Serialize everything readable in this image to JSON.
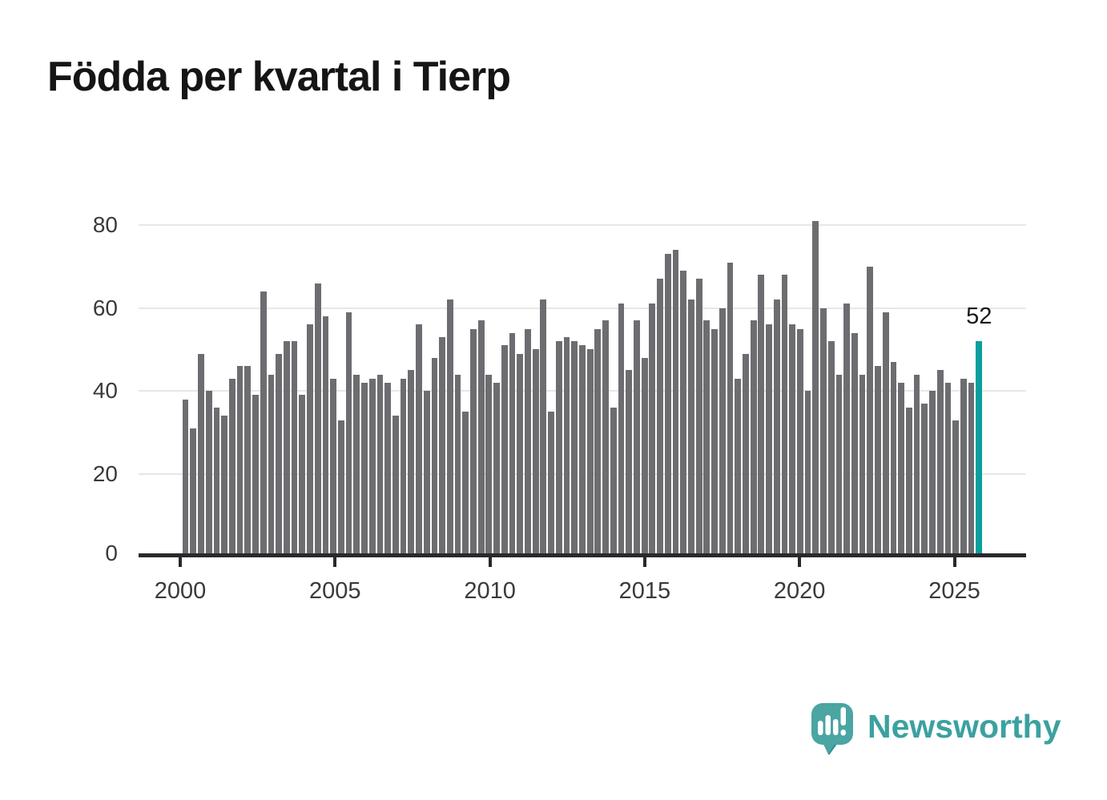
{
  "header": {
    "title": "Födda per kvartal i Tierp"
  },
  "chart_data": {
    "type": "bar",
    "title": "Födda per kvartal i Tierp",
    "x_period": {
      "start": "2000 Q1",
      "end": "2025 Q3",
      "interval": "quarter"
    },
    "x_tick_labels": [
      "2000",
      "2005",
      "2010",
      "2015",
      "2020",
      "2025"
    ],
    "y_ticks": [
      0,
      20,
      40,
      60,
      80
    ],
    "ylim": [
      0,
      85
    ],
    "grid": "horizontal-only",
    "values": [
      38,
      31,
      49,
      40,
      36,
      34,
      43,
      46,
      46,
      39,
      64,
      44,
      49,
      52,
      52,
      39,
      56,
      66,
      58,
      43,
      33,
      59,
      44,
      42,
      43,
      44,
      42,
      34,
      43,
      45,
      56,
      40,
      48,
      53,
      62,
      44,
      35,
      55,
      57,
      44,
      42,
      51,
      54,
      49,
      55,
      50,
      62,
      35,
      52,
      53,
      52,
      51,
      50,
      55,
      57,
      36,
      61,
      45,
      57,
      48,
      61,
      67,
      73,
      74,
      69,
      62,
      67,
      57,
      55,
      60,
      71,
      43,
      49,
      57,
      68,
      56,
      62,
      68,
      56,
      55,
      40,
      81,
      60,
      52,
      44,
      61,
      54,
      44,
      70,
      46,
      59,
      47,
      42,
      36,
      44,
      37,
      40,
      45,
      42,
      33,
      43,
      42,
      52
    ],
    "highlight": {
      "position": "last",
      "value": 52,
      "label": "52"
    },
    "colors": {
      "bar": "#6d6d71",
      "highlight": "#0a9e9e",
      "grid": "#e7e7e7",
      "axis": "#29292b",
      "tick_label": "#3a3a3a",
      "annotation": "#191919"
    }
  },
  "footer": {
    "brand": "Newsworthy",
    "brand_color": "#3ba1a0",
    "logo_icon": "speech-bubble-bar-chart"
  }
}
